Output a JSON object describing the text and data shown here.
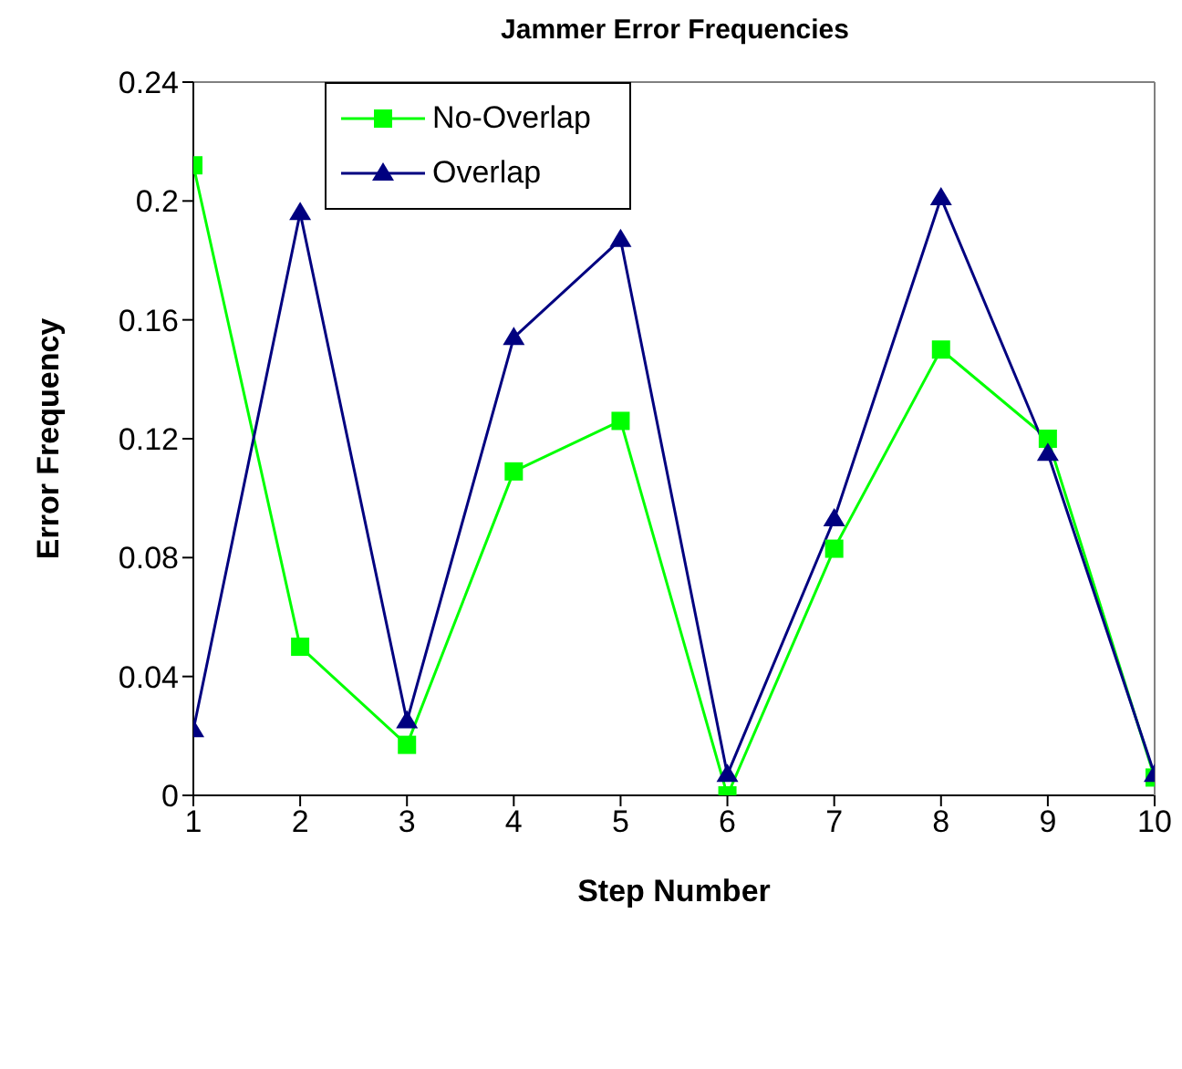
{
  "chart_data": {
    "type": "line",
    "title": "Jammer Error Frequencies",
    "xlabel": "Step Number",
    "ylabel": "Error Frequency",
    "x": [
      1,
      2,
      3,
      4,
      5,
      6,
      7,
      8,
      9,
      10
    ],
    "series": [
      {
        "name": "No-Overlap",
        "color": "#00ff00",
        "marker": "square",
        "values": [
          0.212,
          0.05,
          0.017,
          0.109,
          0.126,
          0,
          0.083,
          0.15,
          0.12,
          0.006
        ]
      },
      {
        "name": "Overlap",
        "color": "#000080",
        "marker": "triangle",
        "values": [
          0.022,
          0.196,
          0.025,
          0.154,
          0.187,
          0.007,
          0.093,
          0.201,
          0.115,
          0.007
        ]
      }
    ],
    "xlim": [
      1,
      10
    ],
    "xticks": [
      1,
      2,
      3,
      4,
      5,
      6,
      7,
      8,
      9,
      10
    ],
    "ylim": [
      0,
      0.24
    ],
    "yticks": [
      0,
      0.04,
      0.08,
      0.12,
      0.16,
      0.2,
      0.24
    ],
    "grid": false,
    "legend": "top left",
    "line_style": "solid"
  }
}
